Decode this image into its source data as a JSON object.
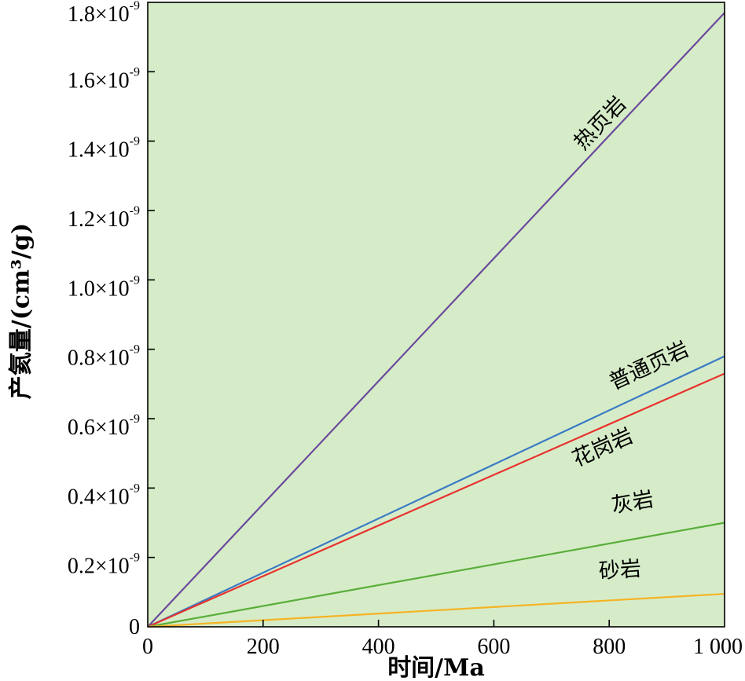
{
  "chart_data": {
    "type": "line",
    "xlabel": "时间/Ma",
    "ylabel": "产氦量/(cm³/g)",
    "xlim": [
      0,
      1000
    ],
    "ylim": [
      0,
      1.8e-09
    ],
    "grid": false,
    "legend": false,
    "background_color": "#d6ecc8",
    "x_ticks": [
      {
        "value": 0,
        "label": "0"
      },
      {
        "value": 200,
        "label": "200"
      },
      {
        "value": 400,
        "label": "400"
      },
      {
        "value": 600,
        "label": "600"
      },
      {
        "value": 800,
        "label": "800"
      },
      {
        "value": 1000,
        "label": "1 000"
      }
    ],
    "y_ticks": [
      {
        "value": 0,
        "label": "0",
        "exp": ""
      },
      {
        "value": 2e-10,
        "label": "0.2×10",
        "exp": "-9"
      },
      {
        "value": 4e-10,
        "label": "0.4×10",
        "exp": "-9"
      },
      {
        "value": 6e-10,
        "label": "0.6×10",
        "exp": "-9"
      },
      {
        "value": 8e-10,
        "label": "0.8×10",
        "exp": "-9"
      },
      {
        "value": 1e-09,
        "label": "1.0×10",
        "exp": "-9"
      },
      {
        "value": 1.2e-09,
        "label": "1.2×10",
        "exp": "-9"
      },
      {
        "value": 1.4e-09,
        "label": "1.4×10",
        "exp": "-9"
      },
      {
        "value": 1.6e-09,
        "label": "1.6×10",
        "exp": "-9"
      },
      {
        "value": 1.8e-09,
        "label": "1.8×10",
        "exp": "-9"
      }
    ],
    "series": [
      {
        "name": "热页岩",
        "color": "#6a4a9c",
        "x": [
          0,
          1000
        ],
        "y": [
          0,
          1.77e-09
        ]
      },
      {
        "name": "普通页岩",
        "color": "#3b7bc4",
        "x": [
          0,
          1000
        ],
        "y": [
          0,
          7.8e-10
        ]
      },
      {
        "name": "花岗岩",
        "color": "#e8322e",
        "x": [
          0,
          1000
        ],
        "y": [
          0,
          7.3e-10
        ]
      },
      {
        "name": "灰岩",
        "color": "#5aae3a",
        "x": [
          0,
          1000
        ],
        "y": [
          0,
          3e-10
        ]
      },
      {
        "name": "砂岩",
        "color": "#f5b324",
        "x": [
          0,
          1000
        ],
        "y": [
          0,
          9.5e-11
        ]
      }
    ]
  }
}
